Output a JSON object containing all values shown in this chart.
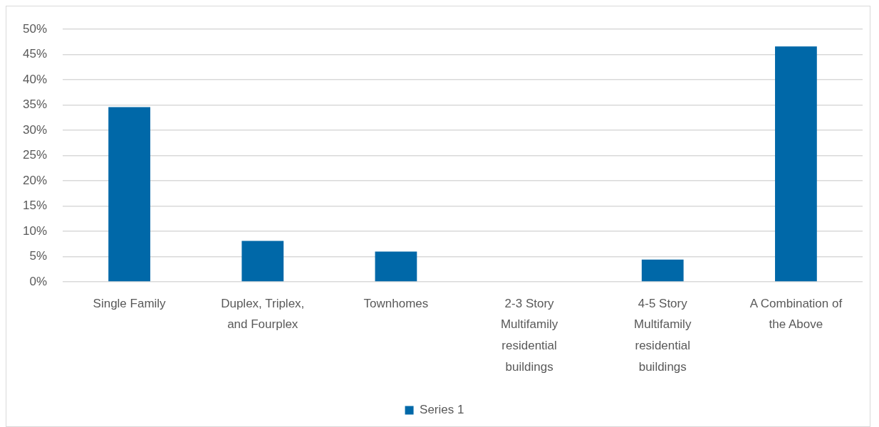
{
  "chart_data": {
    "type": "bar",
    "categories": [
      "Single Family",
      "Duplex, Triplex, and Fourplex",
      "Townhomes",
      "2-3 Story Multifamily residential buildings",
      "4-5 Story Multifamily residential buildings",
      "A Combination of the Above"
    ],
    "series": [
      {
        "name": "Series 1",
        "color": "#0068a8",
        "values": [
          34.6,
          8.1,
          6.0,
          0,
          4.4,
          46.6
        ]
      }
    ],
    "ylim": [
      0,
      50
    ],
    "yticks": [
      {
        "value": 0,
        "label": "0%"
      },
      {
        "value": 5,
        "label": "5%"
      },
      {
        "value": 10,
        "label": "10%"
      },
      {
        "value": 15,
        "label": "15%"
      },
      {
        "value": 20,
        "label": "20%"
      },
      {
        "value": 25,
        "label": "25%"
      },
      {
        "value": 30,
        "label": "30%"
      },
      {
        "value": 35,
        "label": "35%"
      },
      {
        "value": 40,
        "label": "40%"
      },
      {
        "value": 45,
        "label": "45%"
      },
      {
        "value": 50,
        "label": "50%"
      }
    ],
    "grid": "y",
    "legend": "bottom"
  }
}
